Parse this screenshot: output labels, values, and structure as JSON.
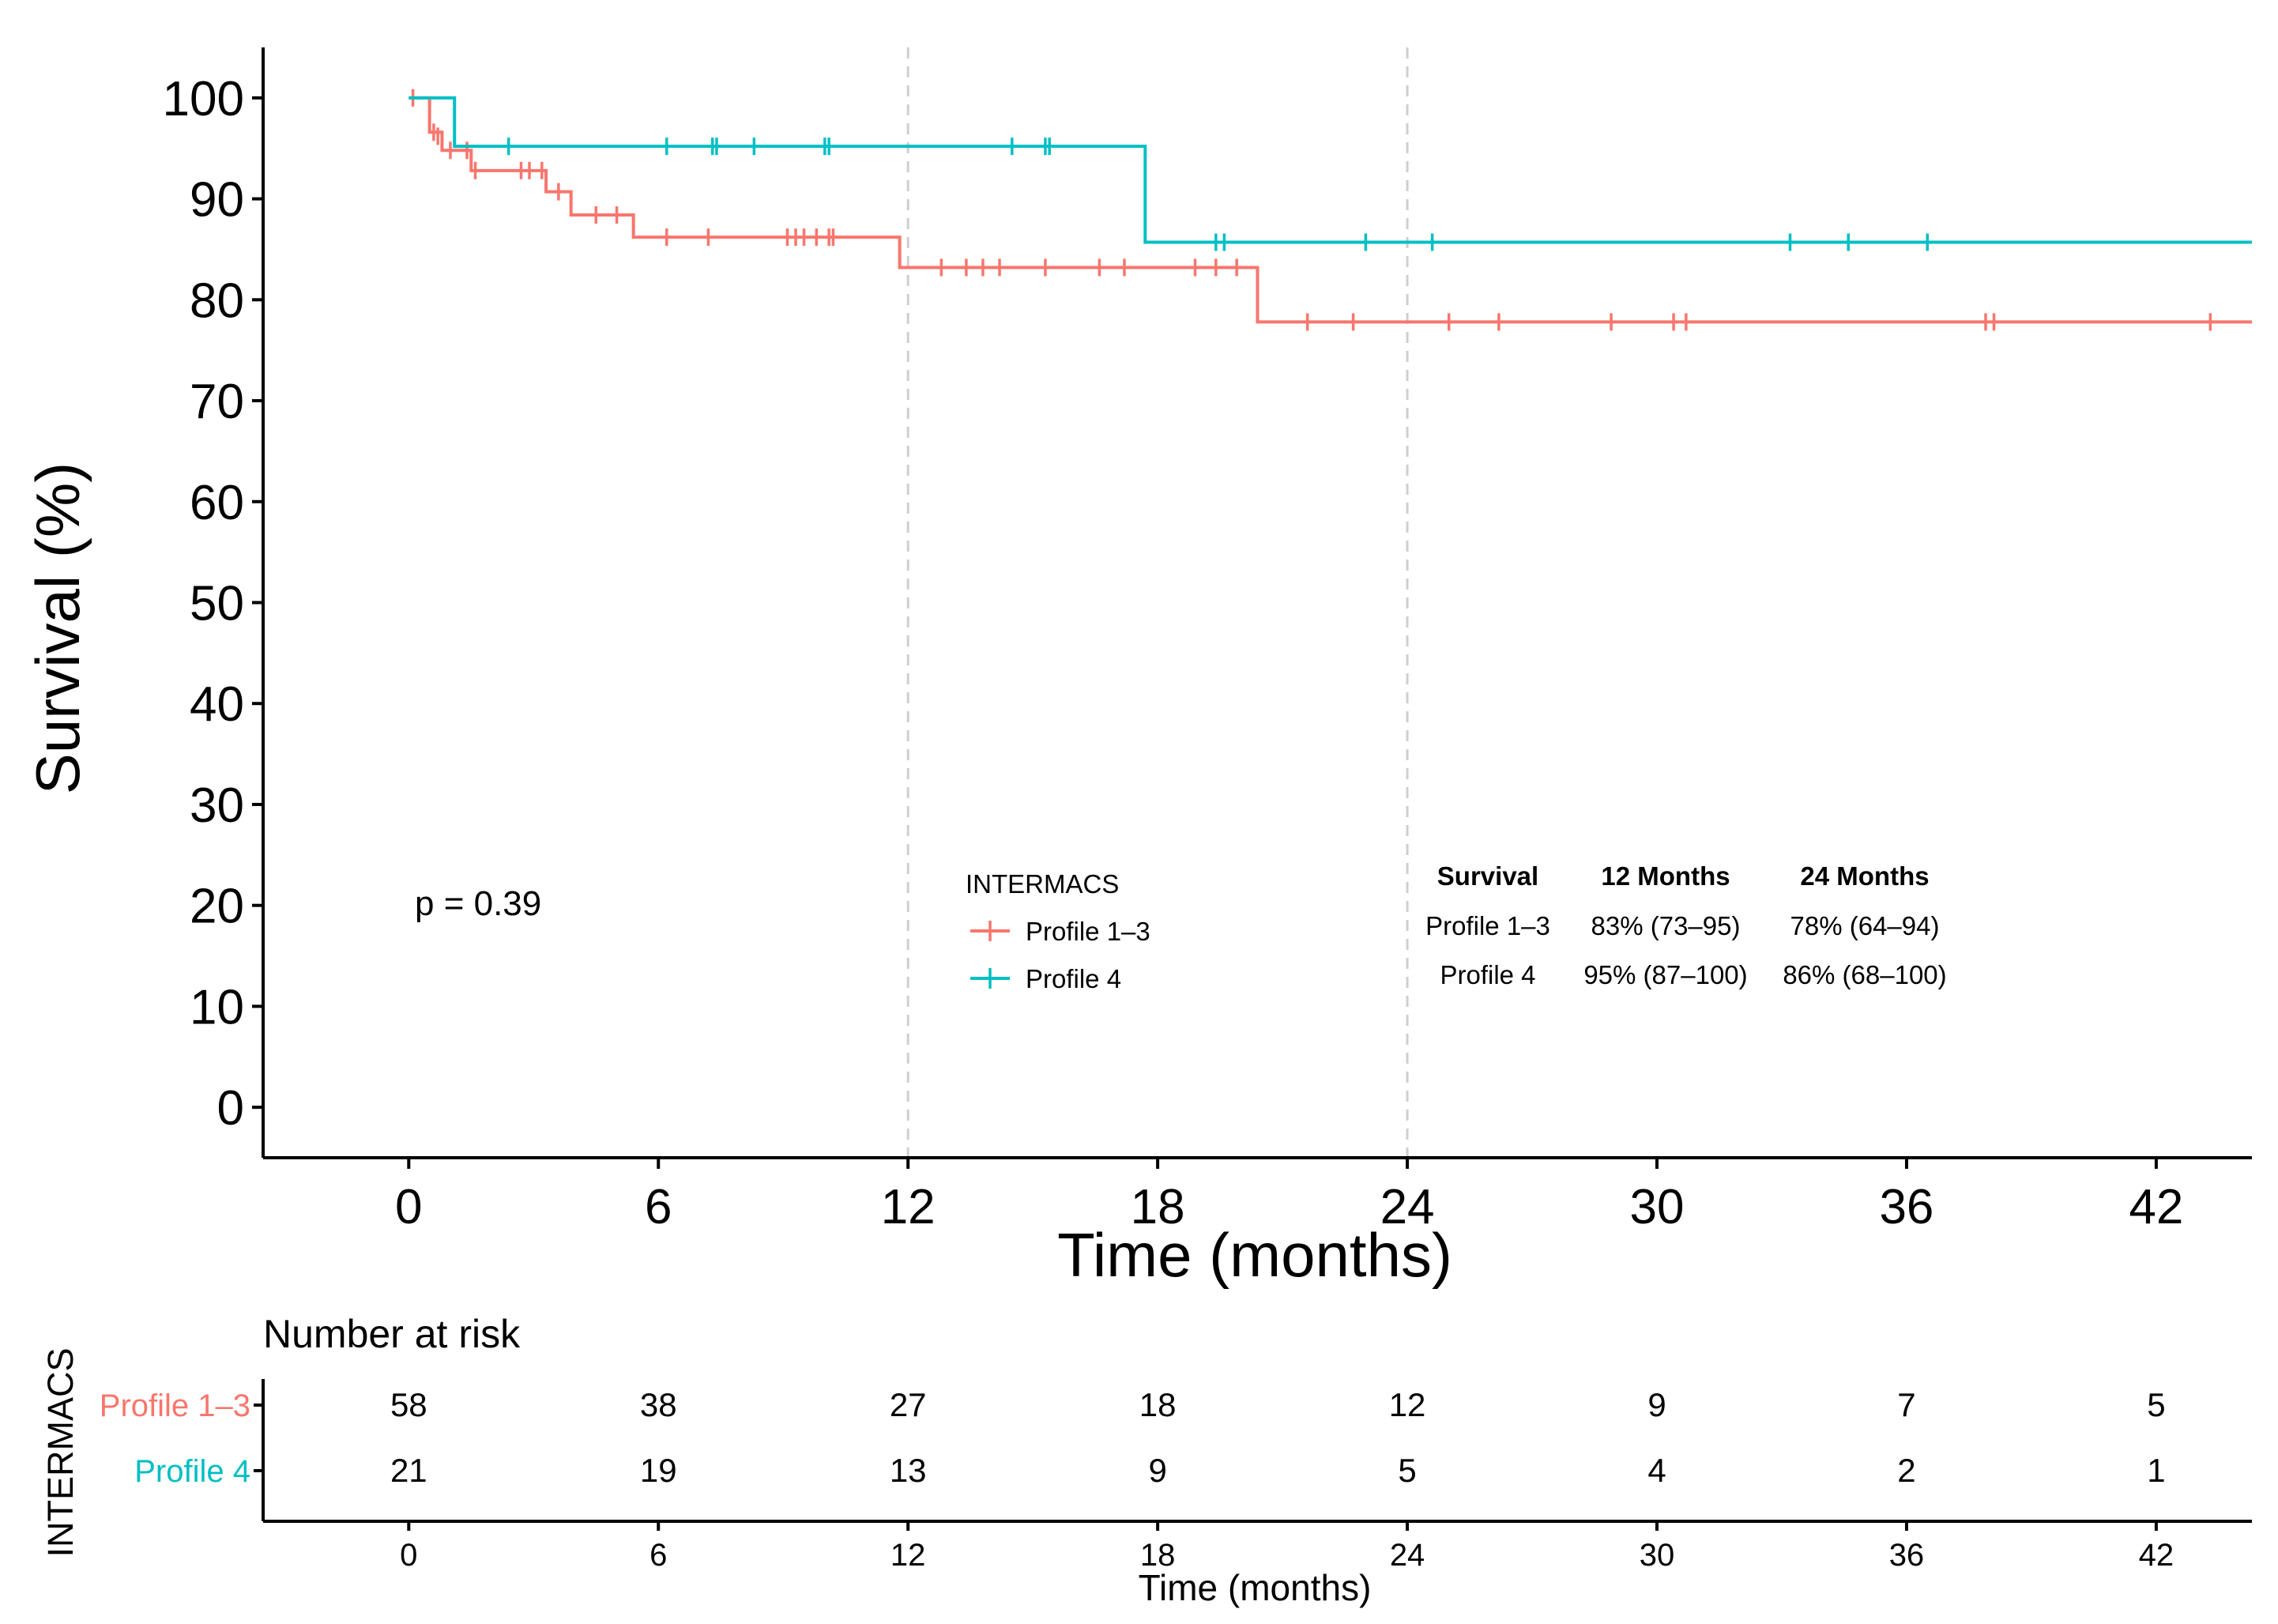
{
  "chart_data": {
    "type": "line",
    "subtype": "kaplan-meier",
    "xlabel": "Time (months)",
    "ylabel": "Survival (%)",
    "xlim": [
      -3.5,
      44.3
    ],
    "ylim": [
      -5,
      105
    ],
    "x_ticks": [
      0,
      6,
      12,
      18,
      24,
      30,
      36,
      42
    ],
    "y_ticks": [
      0,
      10,
      20,
      30,
      40,
      50,
      60,
      70,
      80,
      90,
      100
    ],
    "reference_lines_x": [
      12,
      24
    ],
    "p_value_text": "p = 0.39",
    "legend": {
      "title": "INTERMACS",
      "entries": [
        "Profile 1–3",
        "Profile 4"
      ]
    },
    "series": [
      {
        "name": "Profile 1–3",
        "color": "#F8766D",
        "steps": [
          [
            0,
            100
          ],
          [
            0.5,
            96.6
          ],
          [
            0.8,
            94.8
          ],
          [
            1.5,
            92.8
          ],
          [
            3.3,
            90.7
          ],
          [
            3.9,
            88.4
          ],
          [
            5.4,
            86.2
          ],
          [
            11.8,
            83.2
          ],
          [
            20.4,
            77.8
          ],
          [
            44.3,
            77.8
          ]
        ],
        "censored": [
          [
            0.1,
            100
          ],
          [
            0.6,
            96.6
          ],
          [
            0.7,
            96.2
          ],
          [
            1.0,
            94.8
          ],
          [
            1.4,
            94.8
          ],
          [
            1.6,
            92.8
          ],
          [
            2.7,
            92.8
          ],
          [
            2.9,
            92.8
          ],
          [
            3.2,
            92.8
          ],
          [
            3.6,
            90.7
          ],
          [
            4.5,
            88.4
          ],
          [
            5.0,
            88.4
          ],
          [
            6.2,
            86.2
          ],
          [
            7.2,
            86.2
          ],
          [
            9.1,
            86.2
          ],
          [
            9.3,
            86.2
          ],
          [
            9.5,
            86.2
          ],
          [
            9.8,
            86.2
          ],
          [
            10.1,
            86.2
          ],
          [
            10.2,
            86.2
          ],
          [
            12.8,
            83.2
          ],
          [
            13.4,
            83.2
          ],
          [
            13.8,
            83.2
          ],
          [
            14.2,
            83.2
          ],
          [
            15.3,
            83.2
          ],
          [
            16.6,
            83.2
          ],
          [
            17.2,
            83.2
          ],
          [
            18.9,
            83.2
          ],
          [
            19.4,
            83.2
          ],
          [
            19.9,
            83.2
          ],
          [
            21.6,
            77.8
          ],
          [
            22.7,
            77.8
          ],
          [
            25.0,
            77.8
          ],
          [
            26.2,
            77.8
          ],
          [
            28.9,
            77.8
          ],
          [
            30.4,
            77.8
          ],
          [
            30.7,
            77.8
          ],
          [
            37.9,
            77.8
          ],
          [
            38.1,
            77.8
          ],
          [
            43.3,
            77.8
          ]
        ]
      },
      {
        "name": "Profile 4",
        "color": "#00BFC4",
        "steps": [
          [
            0,
            100
          ],
          [
            1.1,
            95.2
          ],
          [
            17.7,
            85.7
          ],
          [
            44.3,
            85.7
          ]
        ],
        "censored": [
          [
            2.4,
            95.2
          ],
          [
            6.2,
            95.2
          ],
          [
            7.3,
            95.2
          ],
          [
            7.4,
            95.2
          ],
          [
            8.3,
            95.2
          ],
          [
            10.0,
            95.2
          ],
          [
            10.1,
            95.2
          ],
          [
            14.5,
            95.2
          ],
          [
            15.3,
            95.2
          ],
          [
            15.4,
            95.2
          ],
          [
            19.4,
            85.7
          ],
          [
            19.6,
            85.7
          ],
          [
            23.0,
            85.7
          ],
          [
            24.6,
            85.7
          ],
          [
            33.2,
            85.7
          ],
          [
            34.6,
            85.7
          ],
          [
            36.5,
            85.7
          ]
        ]
      }
    ],
    "survival_table": {
      "headers": [
        "Survival",
        "12 Months",
        "24 Months"
      ],
      "rows": [
        [
          "Profile 1–3",
          "83% (73–95)",
          "78% (64–94)"
        ],
        [
          "Profile 4",
          "95% (87–100)",
          "86% (68–100)"
        ]
      ]
    },
    "risk_table": {
      "title": "Number at risk",
      "strata_label": "INTERMACS",
      "xlabel": "Time (months)",
      "times": [
        0,
        6,
        12,
        18,
        24,
        30,
        36,
        42
      ],
      "rows": [
        {
          "name": "Profile 1–3",
          "color": "#F8766D",
          "values": [
            58,
            38,
            27,
            18,
            12,
            9,
            7,
            5
          ]
        },
        {
          "name": "Profile 4",
          "color": "#00BFC4",
          "values": [
            21,
            19,
            13,
            9,
            5,
            4,
            2,
            1
          ]
        }
      ]
    }
  }
}
